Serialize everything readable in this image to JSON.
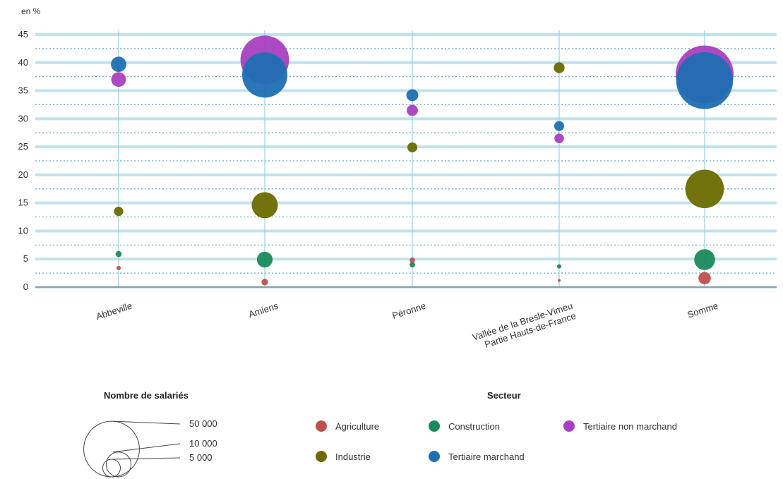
{
  "chart_data": {
    "type": "scatter",
    "ylabel": "en %",
    "ylim": [
      0,
      45
    ],
    "yticks": [
      0,
      5,
      10,
      15,
      20,
      25,
      30,
      35,
      40,
      45
    ],
    "categories": [
      [
        "Abbeville"
      ],
      [
        "Amiens"
      ],
      [
        "Péronne"
      ],
      [
        "Vallée de la Bresle-Vimeu",
        "Partie Hauts-de-France"
      ],
      [
        "Somme"
      ]
    ],
    "series": [
      {
        "name": "Agriculture",
        "color": "#c0504d",
        "values": [
          3.4,
          0.9,
          4.8,
          1.2,
          1.6
        ],
        "employees": [
          300,
          700,
          450,
          100,
          2500
        ]
      },
      {
        "name": "Construction",
        "color": "#1a8a5a",
        "values": [
          5.9,
          4.9,
          4.0,
          3.7,
          4.9
        ],
        "employees": [
          600,
          4000,
          500,
          300,
          7000
        ]
      },
      {
        "name": "Industrie",
        "color": "#6b6b00",
        "values": [
          13.5,
          14.6,
          24.9,
          39.1,
          17.5
        ],
        "employees": [
          1400,
          11000,
          1600,
          1900,
          24000
        ]
      },
      {
        "name": "Tertiaire marchand",
        "color": "#1f6fb2",
        "values": [
          39.7,
          37.8,
          34.2,
          28.7,
          36.8
        ],
        "employees": [
          3800,
          33000,
          2300,
          1600,
          52000
        ]
      },
      {
        "name": "Tertiaire non marchand",
        "color": "#a83fc0",
        "values": [
          37.0,
          40.5,
          31.5,
          26.5,
          37.9
        ],
        "employees": [
          3500,
          38000,
          2000,
          1500,
          54000
        ]
      }
    ],
    "size_legend": {
      "title": "Nombre de salariés",
      "items": [
        {
          "label": "50 000",
          "value": 50000
        },
        {
          "label": "10 000",
          "value": 10000
        },
        {
          "label": "5 000",
          "value": 5000
        }
      ]
    },
    "color_legend": {
      "title": "Secteur",
      "items": [
        "Agriculture",
        "Construction",
        "Tertiaire non marchand",
        "Industrie",
        "Tertiaire marchand"
      ]
    },
    "grid": true
  }
}
